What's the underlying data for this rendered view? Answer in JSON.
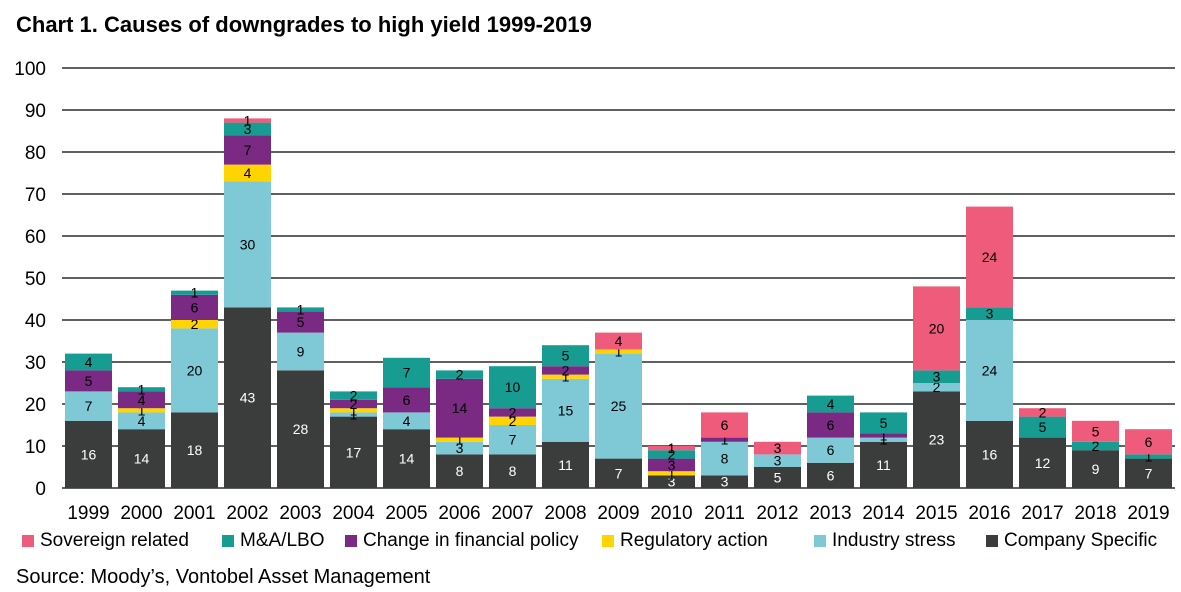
{
  "title": "Chart 1. Causes of downgrades to high yield 1999-2019",
  "source": "Source: Moody’s, Vontobel Asset Management",
  "chart_data": {
    "type": "bar",
    "stacked": true,
    "categories": [
      "1999",
      "2000",
      "2001",
      "2002",
      "2003",
      "2004",
      "2005",
      "2006",
      "2007",
      "2008",
      "2009",
      "2010",
      "2011",
      "2012",
      "2013",
      "2014",
      "2015",
      "2016",
      "2017",
      "2018",
      "2019"
    ],
    "ylim": [
      0,
      100
    ],
    "yticks": [
      0,
      10,
      20,
      30,
      40,
      50,
      60,
      70,
      80,
      90,
      100
    ],
    "grid": true,
    "legend_position": "bottom",
    "series": [
      {
        "name": "Company Specific",
        "color": "#3a3d3b",
        "label_color": "#ffffff",
        "values": [
          16,
          14,
          18,
          43,
          28,
          17,
          14,
          8,
          8,
          11,
          7,
          3,
          3,
          5,
          6,
          11,
          23,
          16,
          12,
          9,
          7
        ]
      },
      {
        "name": "Industry stress",
        "color": "#7fc8d6",
        "label_color": "#000000",
        "values": [
          7,
          4,
          20,
          30,
          9,
          1,
          4,
          3,
          7,
          15,
          25,
          0,
          8,
          3,
          6,
          1,
          2,
          24,
          0,
          0,
          0
        ]
      },
      {
        "name": "Regulatory action",
        "color": "#ffd400",
        "label_color": "#000000",
        "values": [
          0,
          1,
          2,
          4,
          0,
          1,
          0,
          1,
          2,
          1,
          1,
          1,
          0,
          0,
          0,
          0,
          0,
          0,
          0,
          0,
          0
        ]
      },
      {
        "name": "Change in financial policy",
        "color": "#7a2a82",
        "label_color": "#000000",
        "values": [
          5,
          4,
          6,
          7,
          5,
          2,
          6,
          14,
          2,
          2,
          0,
          3,
          1,
          0,
          6,
          1,
          0,
          0,
          0,
          0,
          0
        ]
      },
      {
        "name": "M&A/LBO",
        "color": "#179c92",
        "label_color": "#000000",
        "values": [
          4,
          1,
          1,
          3,
          1,
          2,
          7,
          2,
          10,
          5,
          0,
          2,
          0,
          0,
          4,
          5,
          3,
          3,
          5,
          2,
          1
        ]
      },
      {
        "name": "Sovereign related",
        "color": "#ef5b7a",
        "label_color": "#000000",
        "values": [
          0,
          0,
          0,
          1,
          0,
          0,
          0,
          0,
          0,
          0,
          4,
          1,
          6,
          3,
          0,
          0,
          20,
          24,
          2,
          5,
          6
        ]
      }
    ],
    "legend_order": [
      "Sovereign related",
      "M&A/LBO",
      "Change in financial policy",
      "Regulatory action",
      "Industry stress",
      "Company Specific"
    ]
  }
}
